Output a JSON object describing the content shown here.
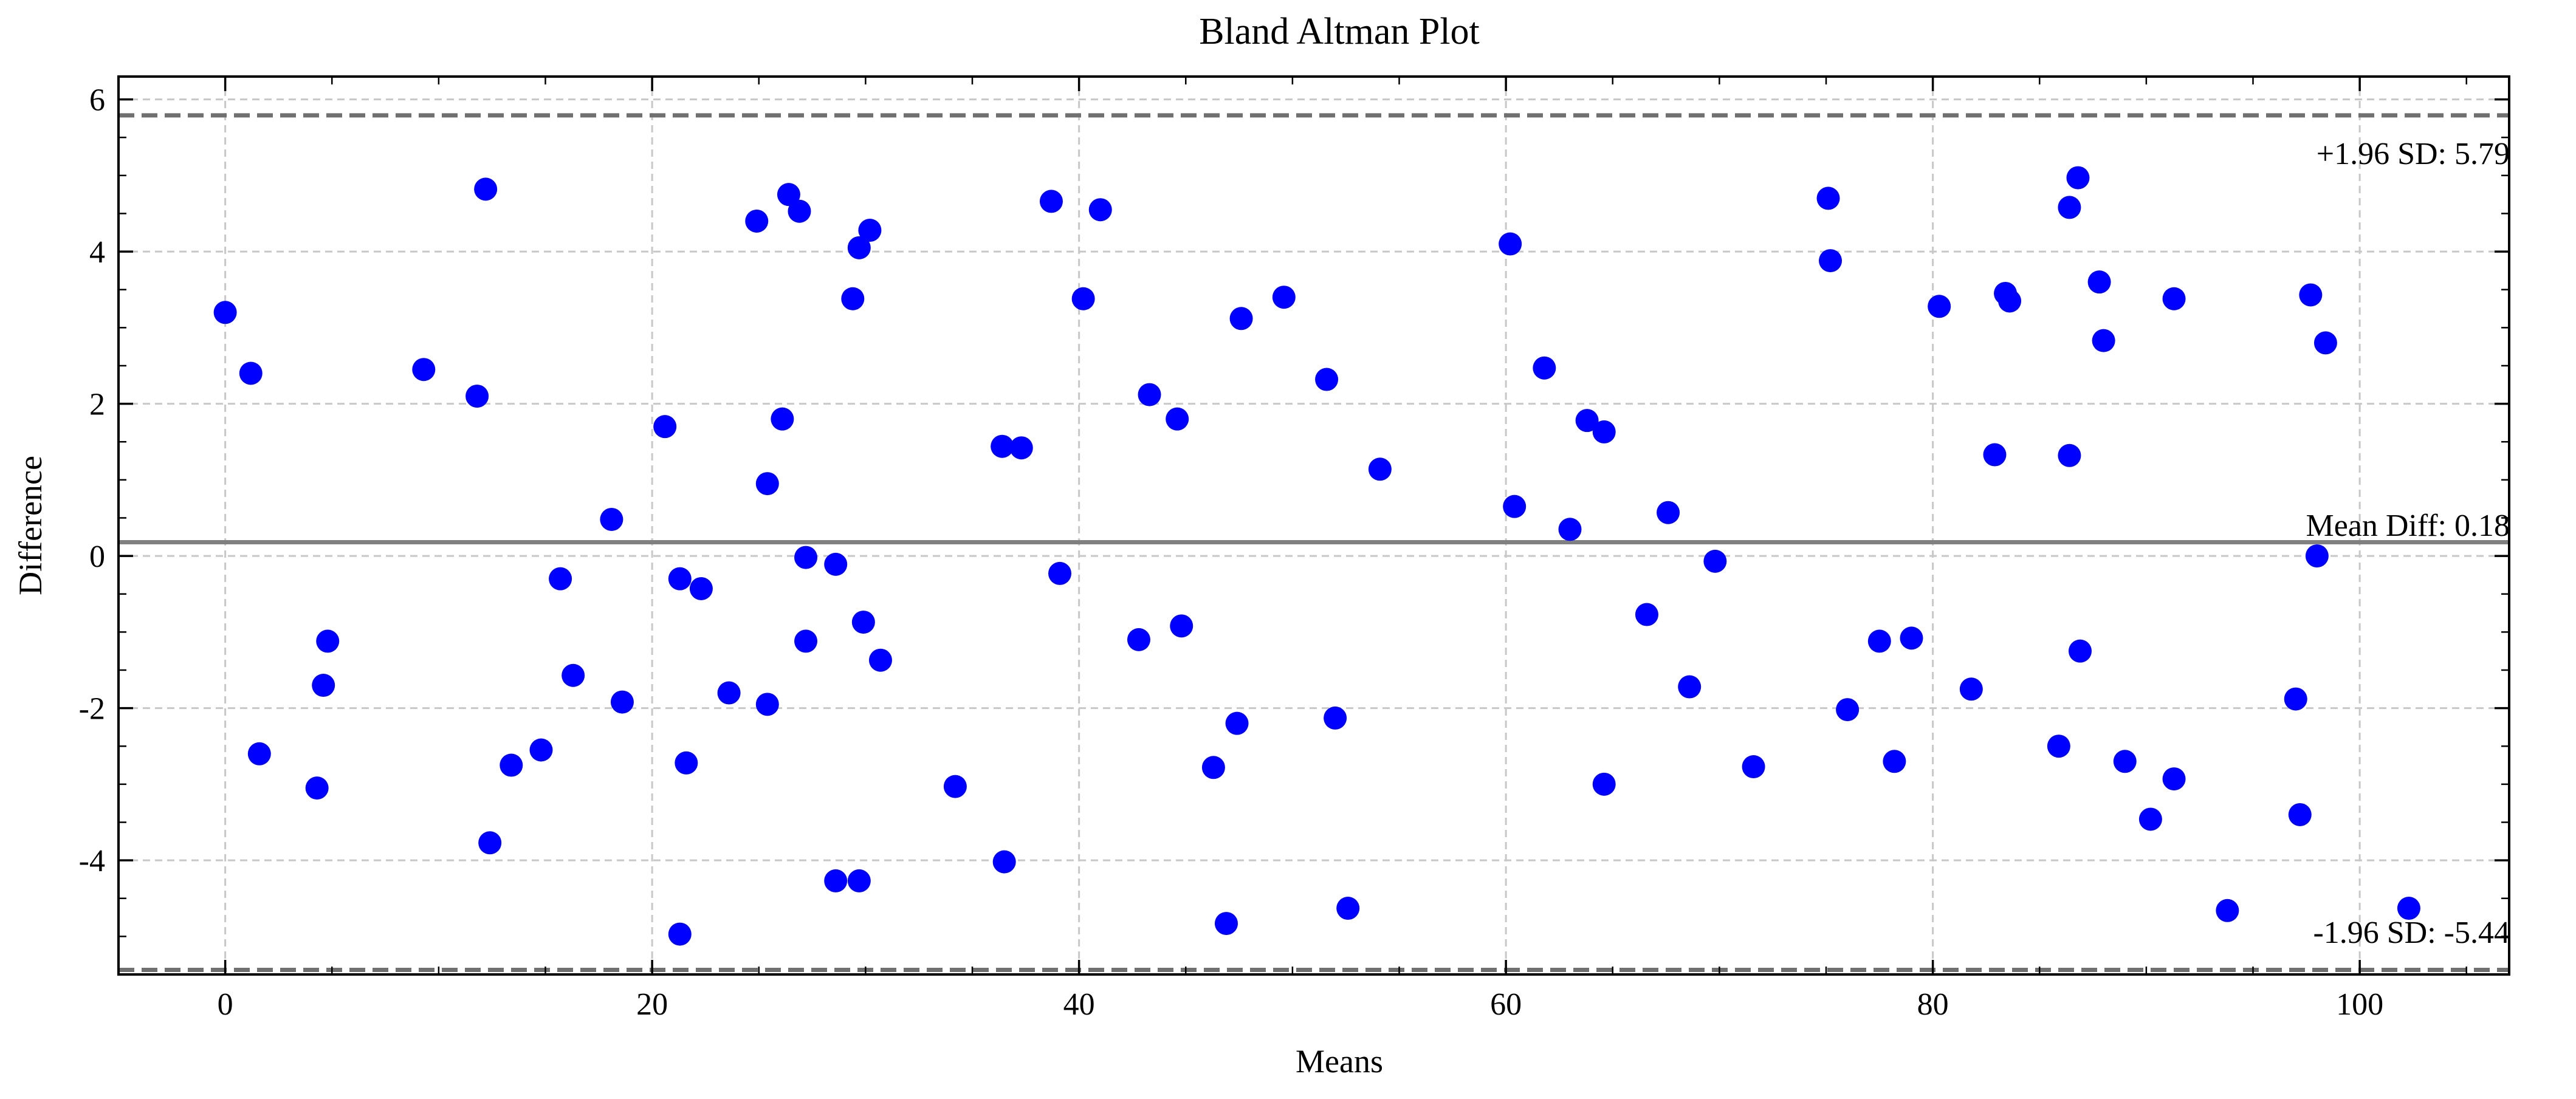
{
  "chart_data": {
    "type": "scatter",
    "title": "Bland Altman Plot",
    "xlabel": "Means",
    "ylabel": "Difference",
    "xlim": [
      -5,
      107
    ],
    "ylim": [
      -5.5,
      6.3
    ],
    "x_ticks": [
      0,
      20,
      40,
      60,
      80,
      100
    ],
    "y_ticks": [
      -4,
      -2,
      0,
      2,
      4,
      6
    ],
    "grid": true,
    "colors": {
      "points": "#0000ff",
      "mean_line": "#808080",
      "sd_lines": "#707070",
      "grid": "#c8c8c8"
    },
    "mean_diff": 0.18,
    "upper_loa": 5.79,
    "lower_loa": -5.44,
    "annotations": {
      "upper": "+1.96 SD: 5.79",
      "mean": "Mean Diff: 0.18",
      "lower": "-1.96 SD: -5.44"
    },
    "points": [
      [
        0.0,
        3.2
      ],
      [
        1.2,
        2.4
      ],
      [
        1.6,
        -2.6
      ],
      [
        4.3,
        -3.05
      ],
      [
        4.6,
        -1.7
      ],
      [
        4.8,
        -1.12
      ],
      [
        9.3,
        2.45
      ],
      [
        11.8,
        2.1
      ],
      [
        12.2,
        4.82
      ],
      [
        12.4,
        -3.77
      ],
      [
        13.4,
        -2.75
      ],
      [
        14.8,
        -2.55
      ],
      [
        15.7,
        -0.3
      ],
      [
        16.3,
        -1.57
      ],
      [
        18.1,
        0.48
      ],
      [
        18.6,
        -1.92
      ],
      [
        20.6,
        1.7
      ],
      [
        21.3,
        -0.3
      ],
      [
        21.3,
        -4.97
      ],
      [
        21.6,
        -2.72
      ],
      [
        22.3,
        -0.43
      ],
      [
        23.6,
        -1.8
      ],
      [
        24.9,
        4.4
      ],
      [
        25.4,
        0.95
      ],
      [
        25.4,
        -1.95
      ],
      [
        26.1,
        1.8
      ],
      [
        26.4,
        4.75
      ],
      [
        26.9,
        4.53
      ],
      [
        27.2,
        -0.02
      ],
      [
        27.2,
        -1.12
      ],
      [
        28.6,
        -0.11
      ],
      [
        28.6,
        -4.27
      ],
      [
        29.4,
        3.38
      ],
      [
        29.7,
        4.05
      ],
      [
        29.7,
        -4.27
      ],
      [
        29.9,
        -0.87
      ],
      [
        30.2,
        4.28
      ],
      [
        30.7,
        -1.37
      ],
      [
        34.2,
        -3.03
      ],
      [
        36.4,
        1.44
      ],
      [
        36.5,
        -4.02
      ],
      [
        37.3,
        1.42
      ],
      [
        38.7,
        4.66
      ],
      [
        39.1,
        -0.23
      ],
      [
        40.2,
        3.38
      ],
      [
        41.0,
        4.55
      ],
      [
        42.8,
        -1.1
      ],
      [
        43.3,
        2.12
      ],
      [
        44.6,
        1.8
      ],
      [
        44.8,
        -0.92
      ],
      [
        46.3,
        -2.78
      ],
      [
        46.9,
        -4.83
      ],
      [
        47.4,
        -2.2
      ],
      [
        47.6,
        3.12
      ],
      [
        49.6,
        3.4
      ],
      [
        51.6,
        2.32
      ],
      [
        52.0,
        -2.13
      ],
      [
        52.6,
        -4.63
      ],
      [
        54.1,
        1.14
      ],
      [
        60.2,
        4.1
      ],
      [
        60.4,
        0.65
      ],
      [
        61.8,
        2.47
      ],
      [
        63.0,
        0.35
      ],
      [
        63.8,
        1.78
      ],
      [
        64.6,
        1.63
      ],
      [
        64.6,
        -3.0
      ],
      [
        66.6,
        -0.77
      ],
      [
        67.6,
        0.57
      ],
      [
        68.6,
        -1.72
      ],
      [
        69.8,
        -0.07
      ],
      [
        71.6,
        -2.77
      ],
      [
        75.1,
        4.7
      ],
      [
        75.2,
        3.88
      ],
      [
        76.0,
        -2.02
      ],
      [
        77.5,
        -1.12
      ],
      [
        78.2,
        -2.7
      ],
      [
        79.0,
        -1.08
      ],
      [
        80.3,
        3.28
      ],
      [
        81.8,
        -1.75
      ],
      [
        82.9,
        1.33
      ],
      [
        83.4,
        3.45
      ],
      [
        83.6,
        3.35
      ],
      [
        85.9,
        -2.5
      ],
      [
        86.4,
        4.58
      ],
      [
        86.4,
        1.32
      ],
      [
        86.8,
        4.97
      ],
      [
        86.9,
        -1.25
      ],
      [
        87.8,
        3.6
      ],
      [
        88.0,
        2.83
      ],
      [
        89.0,
        -2.7
      ],
      [
        90.2,
        -3.46
      ],
      [
        91.3,
        3.38
      ],
      [
        91.3,
        -2.93
      ],
      [
        93.8,
        -4.66
      ],
      [
        97.0,
        -1.88
      ],
      [
        97.2,
        -3.4
      ],
      [
        97.7,
        3.43
      ],
      [
        98.0,
        0.0
      ],
      [
        98.4,
        2.8
      ],
      [
        102.3,
        -4.63
      ]
    ]
  }
}
